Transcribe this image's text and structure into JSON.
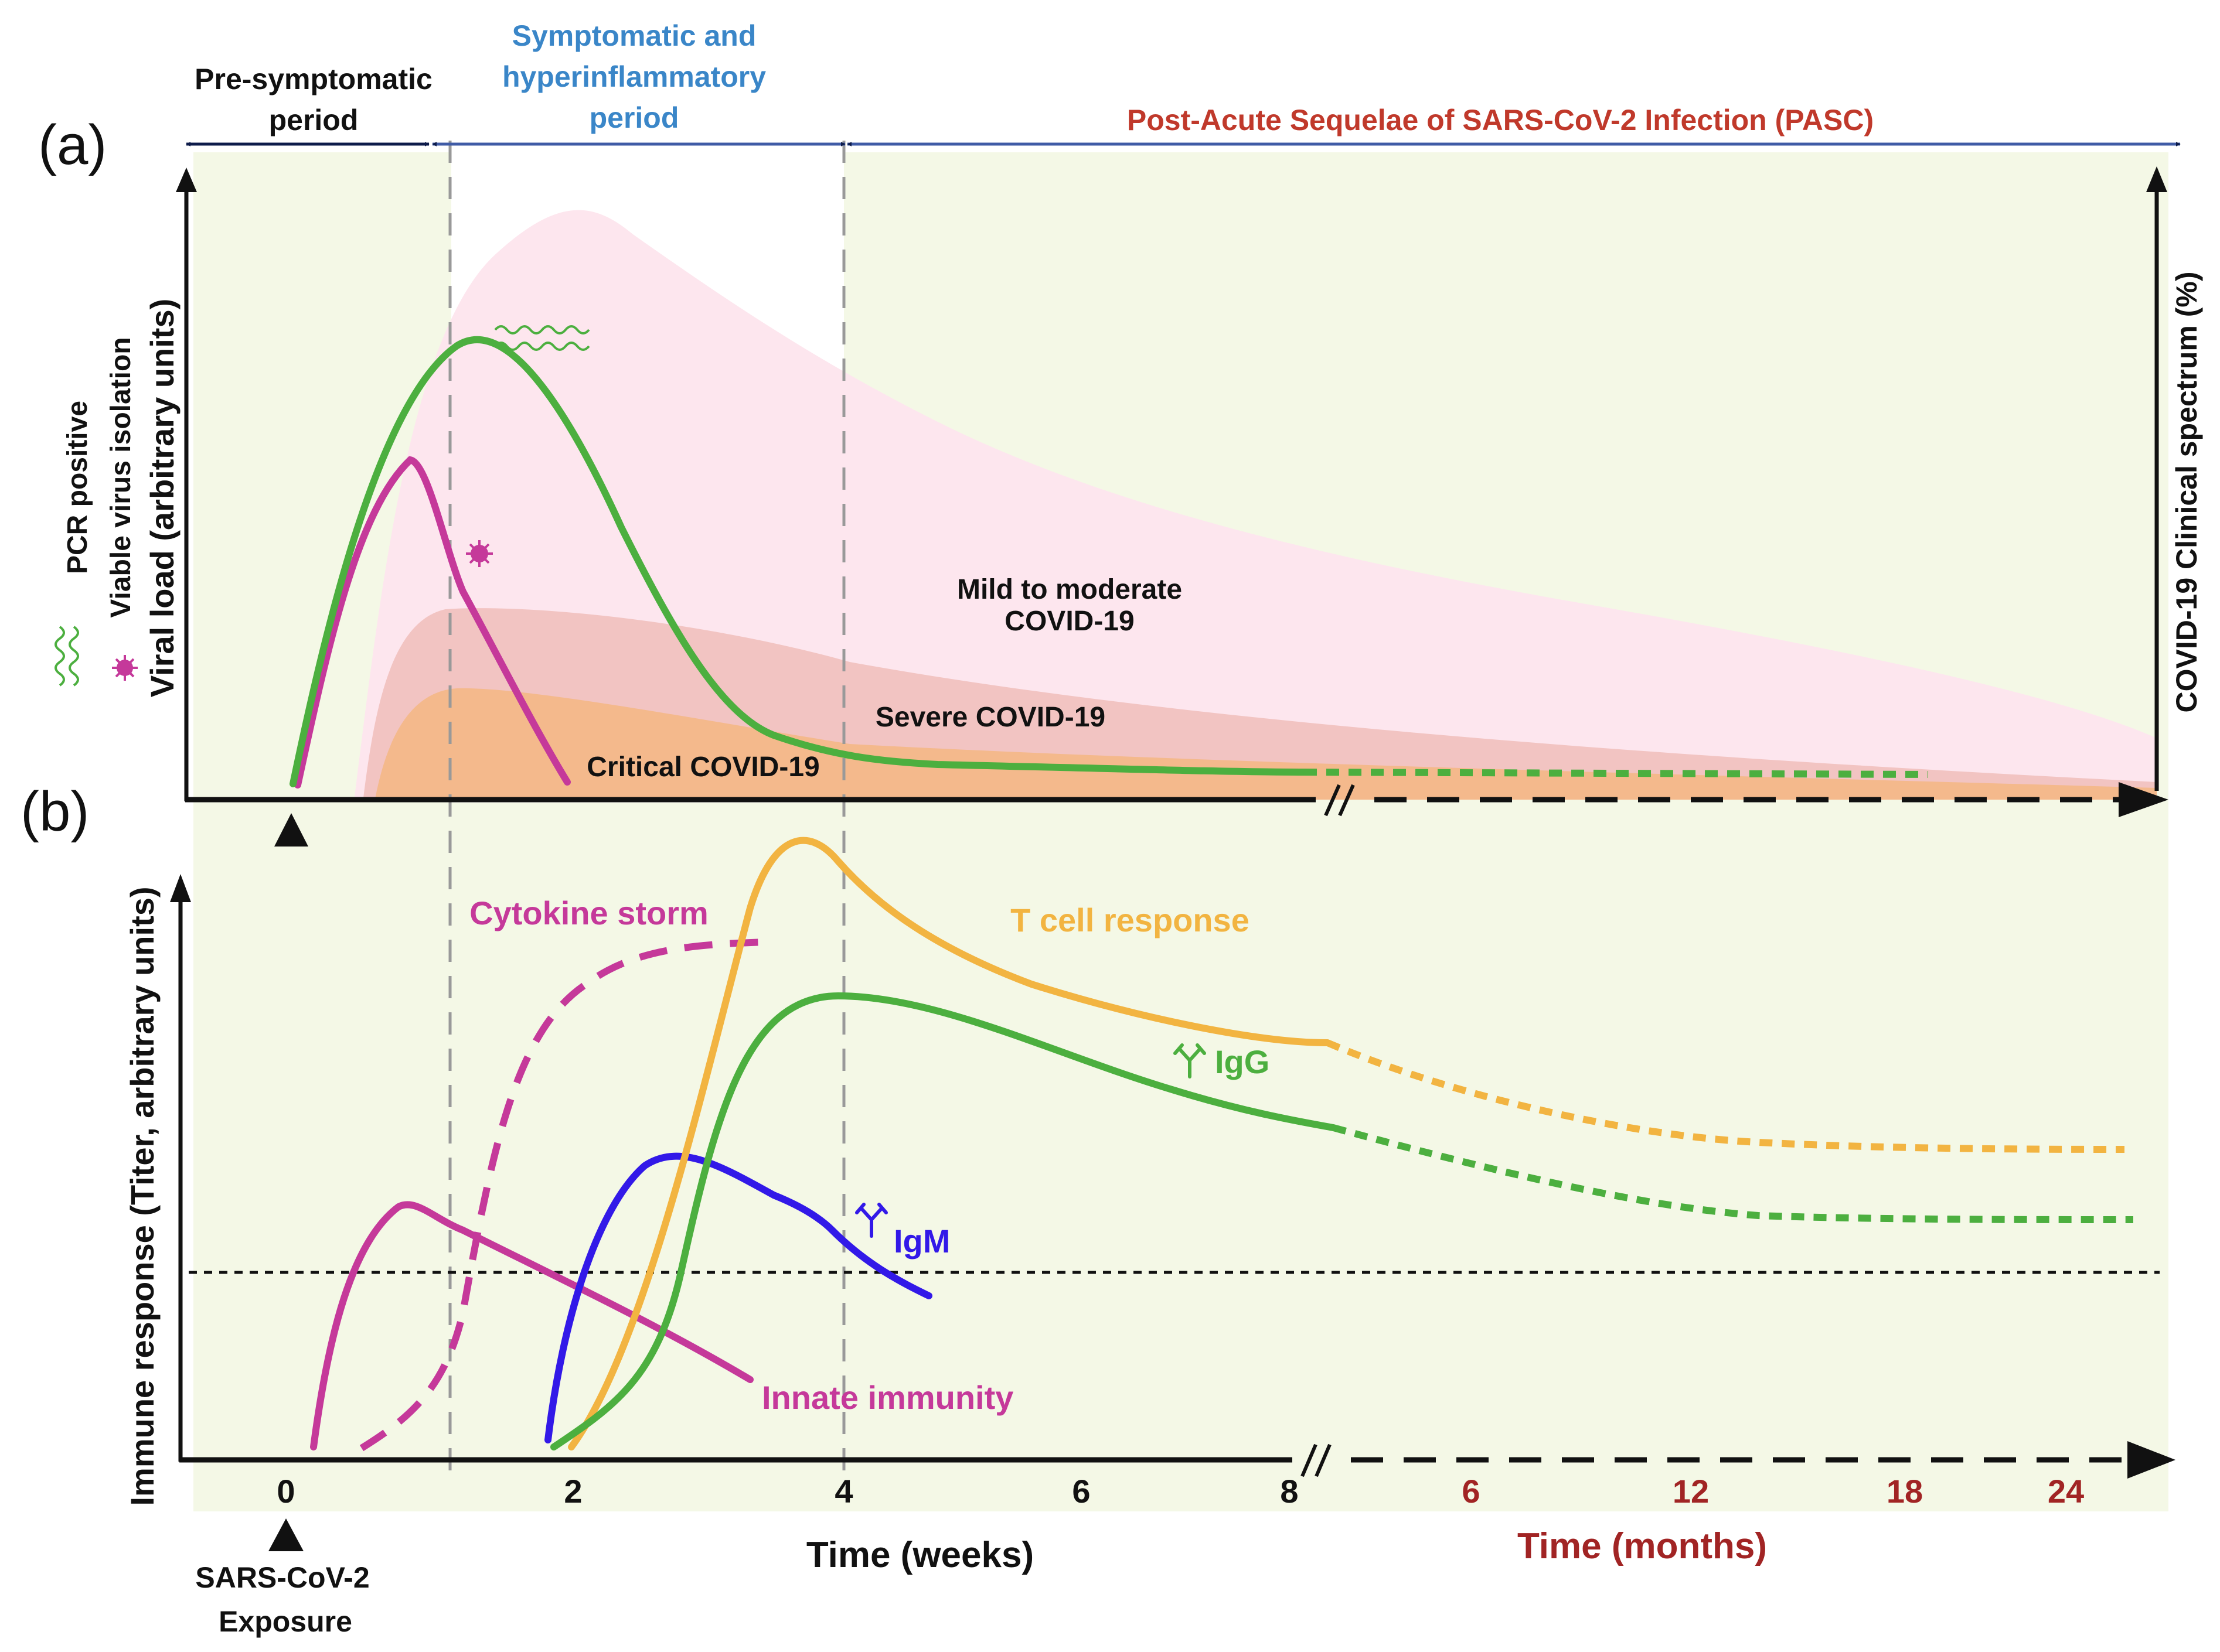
{
  "panel_labels": {
    "a": "(a)",
    "b": "(b)"
  },
  "periods": {
    "pre_symptomatic": {
      "line1": "Pre-symptomatic",
      "line2": "period"
    },
    "symptomatic": {
      "line1": "Symptomatic and",
      "line2": "hyperinflammatory",
      "line3": "period"
    },
    "pasc": "Post-Acute Sequelae of SARS-CoV-2 Infection (PASC)"
  },
  "panel_a": {
    "y_axis_label": "Viral load (arbitrary units)",
    "legend": {
      "pcr": "PCR positive",
      "viable": "Viable virus isolation"
    },
    "right_axis_label": "COVID-19 Clinical spectrum (%)",
    "spectrum_labels": {
      "mild_line1": "Mild to moderate",
      "mild_line2": "COVID-19",
      "severe": "Severe COVID-19",
      "critical": "Critical COVID-19"
    }
  },
  "panel_b": {
    "y_axis_label": "Immune response (Titer, arbitrary units)",
    "curve_labels": {
      "cytokine": "Cytokine storm",
      "tcell": "T cell response",
      "igg": "IgG",
      "igm": "IgM",
      "innate": "Innate immunity"
    },
    "x_weeks": {
      "ticks": [
        "0",
        "2",
        "4",
        "6",
        "8"
      ],
      "label": "Time (weeks)"
    },
    "x_months": {
      "ticks": [
        "6",
        "12",
        "18",
        "24"
      ],
      "label": "Time (months)"
    },
    "exposure": {
      "line1": "SARS-CoV-2",
      "line2": "Exposure"
    }
  },
  "colors": {
    "pcr_green": "#4caf3f",
    "viable_magenta": "#c5399a",
    "tcell_orange": "#f2b441",
    "igm_blue": "#3219e8",
    "pasc_red": "#c0392b",
    "symptomatic_blue": "#3a86c8",
    "months_red": "#a12424"
  }
}
